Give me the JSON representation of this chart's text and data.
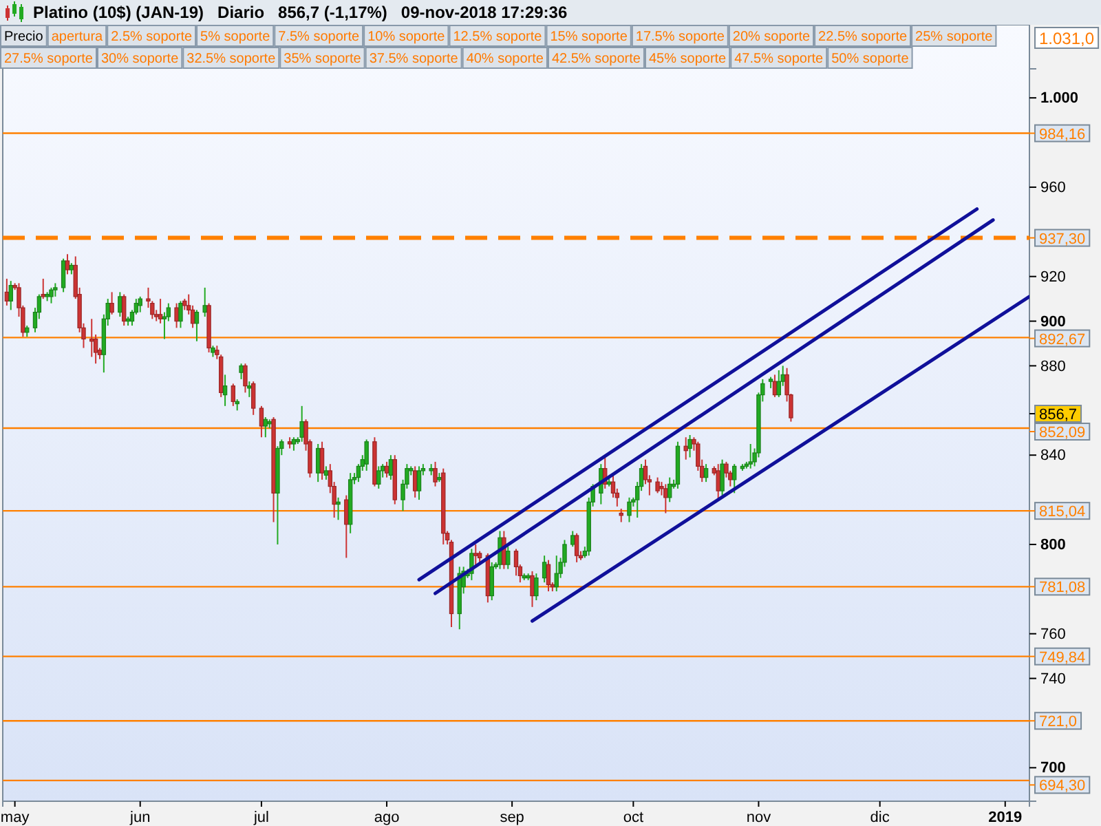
{
  "chart_data": {
    "type": "candlestick",
    "title": "Platino (10$) (JAN-19)   Diario   856,7 (-1,17%)   09-nov-2018 17:29:36",
    "x": [
      "2018-04-29",
      "2018-04-30",
      "2018-05-01",
      "2018-05-02",
      "2018-05-03",
      "2018-05-04",
      "2018-05-06",
      "2018-05-07",
      "2018-05-08",
      "2018-05-09",
      "2018-05-10",
      "2018-05-11",
      "2018-05-13",
      "2018-05-14",
      "2018-05-15",
      "2018-05-16",
      "2018-05-17",
      "2018-05-18",
      "2018-05-20",
      "2018-05-21",
      "2018-05-22",
      "2018-05-23",
      "2018-05-24",
      "2018-05-25",
      "2018-05-27",
      "2018-05-28",
      "2018-05-29",
      "2018-05-30",
      "2018-05-31",
      "2018-06-01",
      "2018-06-03",
      "2018-06-04",
      "2018-06-05",
      "2018-06-06",
      "2018-06-07",
      "2018-06-08",
      "2018-06-10",
      "2018-06-11",
      "2018-06-12",
      "2018-06-13",
      "2018-06-14",
      "2018-06-15",
      "2018-06-17",
      "2018-06-18",
      "2018-06-19",
      "2018-06-20",
      "2018-06-21",
      "2018-06-22",
      "2018-06-24",
      "2018-06-25",
      "2018-06-26",
      "2018-06-27",
      "2018-06-28",
      "2018-06-29",
      "2018-07-01",
      "2018-07-02",
      "2018-07-03",
      "2018-07-04",
      "2018-07-05",
      "2018-07-06",
      "2018-07-08",
      "2018-07-09",
      "2018-07-10",
      "2018-07-11",
      "2018-07-12",
      "2018-07-13",
      "2018-07-15",
      "2018-07-16",
      "2018-07-17",
      "2018-07-18",
      "2018-07-19",
      "2018-07-20",
      "2018-07-22",
      "2018-07-23",
      "2018-07-24",
      "2018-07-25",
      "2018-07-26",
      "2018-07-27",
      "2018-07-29",
      "2018-07-30",
      "2018-07-31",
      "2018-08-01",
      "2018-08-02",
      "2018-08-03",
      "2018-08-05",
      "2018-08-06",
      "2018-08-07",
      "2018-08-08",
      "2018-08-09",
      "2018-08-10",
      "2018-08-12",
      "2018-08-13",
      "2018-08-14",
      "2018-08-15",
      "2018-08-16",
      "2018-08-17",
      "2018-08-19",
      "2018-08-20",
      "2018-08-21",
      "2018-08-22",
      "2018-08-23",
      "2018-08-24",
      "2018-08-26",
      "2018-08-27",
      "2018-08-28",
      "2018-08-29",
      "2018-08-30",
      "2018-08-31",
      "2018-09-02",
      "2018-09-03",
      "2018-09-04",
      "2018-09-05",
      "2018-09-06",
      "2018-09-07",
      "2018-09-09",
      "2018-09-10",
      "2018-09-11",
      "2018-09-12",
      "2018-09-13",
      "2018-09-14",
      "2018-09-16",
      "2018-09-17",
      "2018-09-18",
      "2018-09-19",
      "2018-09-20",
      "2018-09-21",
      "2018-09-23",
      "2018-09-24",
      "2018-09-25",
      "2018-09-26",
      "2018-09-27",
      "2018-09-28",
      "2018-09-30",
      "2018-10-01",
      "2018-10-02",
      "2018-10-03",
      "2018-10-04",
      "2018-10-05",
      "2018-10-07",
      "2018-10-08",
      "2018-10-09",
      "2018-10-10",
      "2018-10-11",
      "2018-10-12",
      "2018-10-14",
      "2018-10-15",
      "2018-10-16",
      "2018-10-17",
      "2018-10-18",
      "2018-10-19",
      "2018-10-21",
      "2018-10-22",
      "2018-10-23",
      "2018-10-24",
      "2018-10-25",
      "2018-10-26",
      "2018-10-28",
      "2018-10-29",
      "2018-10-30",
      "2018-10-31",
      "2018-11-01",
      "2018-11-02",
      "2018-11-04",
      "2018-11-05",
      "2018-11-06",
      "2018-11-07",
      "2018-11-08",
      "2018-11-09"
    ],
    "ohlc": [
      [
        913,
        919,
        907,
        909
      ],
      [
        909,
        918,
        905,
        916
      ],
      [
        916,
        917,
        914,
        915
      ],
      [
        915,
        917,
        902,
        906
      ],
      [
        906,
        907,
        893,
        895
      ],
      [
        895,
        898,
        893,
        897
      ],
      [
        897,
        906,
        895,
        904
      ],
      [
        904,
        912,
        901,
        911
      ],
      [
        912,
        919,
        910,
        911
      ],
      [
        911,
        913,
        909,
        912
      ],
      [
        911,
        915,
        908,
        914
      ],
      [
        914,
        917,
        911,
        915
      ],
      [
        915,
        928,
        913,
        927
      ],
      [
        927,
        930,
        921,
        923
      ],
      [
        923,
        926,
        921,
        925
      ],
      [
        925,
        929,
        910,
        911
      ],
      [
        912,
        915,
        895,
        897
      ],
      [
        897,
        899,
        888,
        892
      ],
      [
        892,
        901,
        884,
        891
      ],
      [
        892,
        894,
        881,
        886
      ],
      [
        887,
        888,
        883,
        885
      ],
      [
        885,
        903,
        877,
        901
      ],
      [
        901,
        910,
        898,
        908
      ],
      [
        908,
        913,
        903,
        904
      ],
      [
        904,
        913,
        902,
        911
      ],
      [
        911,
        912,
        898,
        900
      ],
      [
        900,
        902,
        898,
        901
      ],
      [
        900,
        905,
        898,
        904
      ],
      [
        904,
        910,
        903,
        908
      ],
      [
        907,
        911,
        904,
        910
      ],
      [
        910,
        915,
        906,
        909
      ],
      [
        908,
        909,
        901,
        903
      ],
      [
        903,
        905,
        900,
        902
      ],
      [
        903,
        910,
        899,
        901
      ],
      [
        901,
        904,
        892,
        902
      ],
      [
        902,
        908,
        900,
        906
      ],
      [
        906,
        908,
        897,
        900
      ],
      [
        900,
        909,
        897,
        908
      ],
      [
        909,
        910,
        905,
        907
      ],
      [
        907,
        912,
        903,
        905
      ],
      [
        905,
        907,
        897,
        899
      ],
      [
        899,
        905,
        891,
        904
      ],
      [
        904,
        915,
        902,
        907
      ],
      [
        907,
        908,
        886,
        888
      ],
      [
        886,
        889,
        884,
        888
      ],
      [
        887,
        889,
        883,
        885
      ],
      [
        884,
        885,
        866,
        868
      ],
      [
        867,
        876,
        862,
        871
      ],
      [
        871,
        872,
        862,
        864
      ],
      [
        863,
        865,
        860,
        864
      ],
      [
        877,
        881,
        874,
        880
      ],
      [
        880,
        881,
        868,
        871
      ],
      [
        870,
        873,
        866,
        871
      ],
      [
        872,
        873,
        858,
        861
      ],
      [
        861,
        862,
        848,
        853
      ],
      [
        853,
        857,
        848,
        856
      ],
      [
        854,
        856,
        852,
        855
      ],
      [
        856,
        857,
        810,
        823
      ],
      [
        823,
        844,
        800,
        843
      ],
      [
        843,
        847,
        840,
        846
      ],
      [
        846,
        848,
        843,
        845
      ],
      [
        845,
        848,
        842,
        847
      ],
      [
        846,
        848,
        845,
        847
      ],
      [
        848,
        862,
        846,
        855
      ],
      [
        855,
        856,
        842,
        845
      ],
      [
        846,
        847,
        830,
        832
      ],
      [
        832,
        845,
        828,
        843
      ],
      [
        843,
        846,
        829,
        832
      ],
      [
        831,
        835,
        829,
        833
      ],
      [
        833,
        836,
        823,
        826
      ],
      [
        826,
        828,
        812,
        818
      ],
      [
        818,
        821,
        811,
        819
      ],
      [
        820,
        822,
        794,
        809
      ],
      [
        809,
        832,
        805,
        829
      ],
      [
        829,
        832,
        827,
        830
      ],
      [
        830,
        836,
        828,
        835
      ],
      [
        835,
        840,
        833,
        838
      ],
      [
        836,
        847,
        833,
        846
      ],
      [
        846,
        848,
        826,
        827
      ],
      [
        827,
        835,
        825,
        833
      ],
      [
        833,
        836,
        830,
        835
      ],
      [
        835,
        837,
        830,
        832
      ],
      [
        831,
        840,
        829,
        838
      ],
      [
        838,
        840,
        818,
        820
      ],
      [
        820,
        829,
        815,
        827
      ],
      [
        827,
        836,
        825,
        834
      ],
      [
        833,
        835,
        831,
        834
      ],
      [
        833,
        835,
        821,
        824
      ],
      [
        824,
        835,
        820,
        833
      ],
      [
        833,
        836,
        831,
        834
      ],
      [
        833,
        836,
        831,
        834
      ],
      [
        834,
        837,
        826,
        828
      ],
      [
        829,
        832,
        828,
        830
      ],
      [
        832,
        834,
        800,
        805
      ],
      [
        805,
        806,
        800,
        802
      ],
      [
        801,
        802,
        763,
        769
      ],
      [
        769,
        790,
        762,
        787
      ],
      [
        781,
        790,
        778,
        788
      ],
      [
        786,
        789,
        785,
        787
      ],
      [
        787,
        798,
        784,
        796
      ],
      [
        796,
        800,
        790,
        795
      ],
      [
        796,
        797,
        792,
        794
      ],
      [
        795,
        796,
        774,
        777
      ],
      [
        777,
        792,
        775,
        790
      ],
      [
        790,
        792,
        789,
        791
      ],
      [
        791,
        806,
        789,
        803
      ],
      [
        803,
        806,
        789,
        791
      ],
      [
        791,
        799,
        789,
        797
      ],
      [
        797,
        798,
        786,
        790
      ],
      [
        790,
        791,
        783,
        786
      ],
      [
        785,
        787,
        784,
        786
      ],
      [
        785,
        787,
        784,
        786
      ],
      [
        786,
        788,
        772,
        777
      ],
      [
        777,
        787,
        775,
        785
      ],
      [
        785,
        795,
        783,
        792
      ],
      [
        791,
        793,
        779,
        782
      ],
      [
        782,
        783,
        779,
        781
      ],
      [
        781,
        795,
        779,
        787
      ],
      [
        787,
        794,
        785,
        792
      ],
      [
        792,
        802,
        790,
        800
      ],
      [
        800,
        806,
        799,
        804
      ],
      [
        804,
        805,
        792,
        795
      ],
      [
        795,
        797,
        793,
        794
      ],
      [
        795,
        799,
        794,
        797
      ],
      [
        797,
        821,
        795,
        819
      ],
      [
        819,
        827,
        817,
        826
      ],
      [
        823,
        836,
        818,
        834
      ],
      [
        834,
        840,
        825,
        827
      ],
      [
        827,
        830,
        826,
        828
      ],
      [
        828,
        831,
        821,
        823
      ],
      [
        823,
        825,
        817,
        821
      ],
      [
        814,
        816,
        810,
        813
      ],
      [
        813,
        821,
        810,
        819
      ],
      [
        819,
        821,
        817,
        820
      ],
      [
        820,
        828,
        812,
        826
      ],
      [
        826,
        836,
        824,
        834
      ],
      [
        835,
        838,
        827,
        829
      ],
      [
        829,
        831,
        822,
        828
      ],
      [
        828,
        830,
        823,
        824
      ],
      [
        826,
        828,
        822,
        825
      ],
      [
        825,
        827,
        814,
        821
      ],
      [
        821,
        830,
        819,
        827
      ],
      [
        826,
        829,
        825,
        827
      ],
      [
        827,
        846,
        825,
        844
      ],
      [
        844,
        848,
        838,
        842
      ],
      [
        843,
        849,
        839,
        847
      ],
      [
        847,
        848,
        842,
        845
      ],
      [
        845,
        846,
        833,
        835
      ],
      [
        835,
        838,
        828,
        830
      ],
      [
        830,
        836,
        828,
        834
      ],
      [
        834,
        835,
        831,
        832
      ],
      [
        833,
        836,
        820,
        824
      ],
      [
        824,
        838,
        822,
        836
      ],
      [
        836,
        837,
        830,
        832
      ],
      [
        832,
        833,
        826,
        829
      ],
      [
        829,
        836,
        823,
        835
      ],
      [
        834,
        836,
        833,
        835
      ],
      [
        835,
        837,
        834,
        836
      ],
      [
        836,
        845,
        834,
        837
      ],
      [
        837,
        843,
        835,
        841
      ],
      [
        841,
        868,
        839,
        867
      ],
      [
        867,
        874,
        864,
        872
      ],
      [
        873,
        875,
        870,
        874
      ],
      [
        873,
        876,
        866,
        867
      ],
      [
        867,
        878,
        866,
        873
      ],
      [
        873,
        880,
        871,
        876
      ],
      [
        876,
        879,
        864,
        867
      ],
      [
        867,
        867.5,
        855,
        856.7
      ]
    ],
    "colors": [
      "#cc3333",
      "#22aa22",
      "#cc3333",
      "#cc3333",
      "#cc3333",
      "#22aa22",
      "#22aa22",
      "#22aa22",
      "#cc3333",
      "#22aa22",
      "#22aa22",
      "#22aa22",
      "#22aa22",
      "#cc3333",
      "#22aa22",
      "#cc3333",
      "#cc3333",
      "#cc3333",
      "#cc3333",
      "#cc3333",
      "#cc3333",
      "#22aa22",
      "#22aa22",
      "#cc3333",
      "#22aa22",
      "#cc3333",
      "#22aa22",
      "#22aa22",
      "#22aa22",
      "#22aa22",
      "#cc3333",
      "#cc3333",
      "#cc3333",
      "#cc3333",
      "#22aa22",
      "#22aa22",
      "#cc3333",
      "#22aa22",
      "#cc3333",
      "#cc3333",
      "#cc3333",
      "#22aa22",
      "#22aa22",
      "#cc3333",
      "#22aa22",
      "#cc3333",
      "#cc3333",
      "#22aa22",
      "#cc3333",
      "#22aa22",
      "#22aa22",
      "#cc3333",
      "#22aa22",
      "#cc3333",
      "#cc3333",
      "#22aa22",
      "#22aa22",
      "#cc3333",
      "#22aa22",
      "#22aa22",
      "#cc3333",
      "#22aa22",
      "#22aa22",
      "#22aa22",
      "#cc3333",
      "#cc3333",
      "#22aa22",
      "#cc3333",
      "#22aa22",
      "#cc3333",
      "#cc3333",
      "#22aa22",
      "#cc3333",
      "#22aa22",
      "#22aa22",
      "#22aa22",
      "#22aa22",
      "#22aa22",
      "#cc3333",
      "#22aa22",
      "#22aa22",
      "#cc3333",
      "#22aa22",
      "#cc3333",
      "#22aa22",
      "#22aa22",
      "#22aa22",
      "#cc3333",
      "#22aa22",
      "#22aa22",
      "#22aa22",
      "#cc3333",
      "#22aa22",
      "#cc3333",
      "#cc3333",
      "#cc3333",
      "#22aa22",
      "#22aa22",
      "#22aa22",
      "#22aa22",
      "#cc3333",
      "#cc3333",
      "#cc3333",
      "#22aa22",
      "#22aa22",
      "#22aa22",
      "#cc3333",
      "#22aa22",
      "#cc3333",
      "#cc3333",
      "#22aa22",
      "#22aa22",
      "#cc3333",
      "#22aa22",
      "#22aa22",
      "#cc3333",
      "#cc3333",
      "#22aa22",
      "#22aa22",
      "#22aa22",
      "#22aa22",
      "#cc3333",
      "#cc3333",
      "#22aa22",
      "#22aa22",
      "#22aa22",
      "#22aa22",
      "#cc3333",
      "#22aa22",
      "#cc3333",
      "#cc3333",
      "#cc3333",
      "#22aa22",
      "#22aa22",
      "#22aa22",
      "#22aa22",
      "#cc3333",
      "#cc3333",
      "#cc3333",
      "#cc3333",
      "#cc3333",
      "#22aa22",
      "#22aa22",
      "#22aa22",
      "#cc3333",
      "#22aa22",
      "#cc3333",
      "#cc3333",
      "#cc3333",
      "#22aa22",
      "#cc3333",
      "#cc3333",
      "#22aa22",
      "#cc3333",
      "#cc3333",
      "#22aa22",
      "#22aa22",
      "#22aa22",
      "#22aa22",
      "#22aa22",
      "#22aa22",
      "#22aa22",
      "#22aa22",
      "#cc3333",
      "#22aa22",
      "#22aa22",
      "#cc3333",
      "#cc3333"
    ],
    "series": [
      {
        "type": "line",
        "x": [
          "2018-08-09",
          "2018-12-25"
        ],
        "values": [
          784.2,
          950.2
        ],
        "color": "#10109a"
      },
      {
        "type": "line",
        "x": [
          "2018-08-13",
          "2018-12-29"
        ],
        "values": [
          778.1,
          945.3
        ],
        "color": "#10109a"
      },
      {
        "type": "line",
        "x": [
          "2018-09-06",
          "2019-01-07"
        ],
        "values": [
          765.7,
          911
        ],
        "color": "#10109a"
      }
    ],
    "xlim": [
      "2018-04-28",
      "2019-01-07"
    ],
    "ylim": [
      685,
      1013
    ],
    "xticks": [
      {
        "value": "2018-05-01",
        "label": "may"
      },
      {
        "value": "2018-06-01",
        "label": "jun"
      },
      {
        "value": "2018-07-01",
        "label": "jul"
      },
      {
        "value": "2018-08-01",
        "label": "ago"
      },
      {
        "value": "2018-09-01",
        "label": "sep"
      },
      {
        "value": "2018-10-01",
        "label": "oct"
      },
      {
        "value": "2018-11-01",
        "label": "nov"
      },
      {
        "value": "2018-12-01",
        "label": "dic"
      },
      {
        "value": "2019-01-01",
        "label": "2019"
      }
    ],
    "yticks": [
      700,
      740,
      760,
      800,
      840,
      880,
      900,
      920,
      960,
      {
        "value": 1000,
        "label": "1.000"
      }
    ],
    "ref_lines": [
      {
        "axis": "y",
        "value": 984.16,
        "label": "984,16",
        "color": "#ff8000"
      },
      {
        "axis": "y",
        "value": 937.3,
        "label": "937,30",
        "color": "#ff8000",
        "line_style": "dashed"
      },
      {
        "axis": "y",
        "value": 892.67,
        "label": "892,67",
        "color": "#ff8000"
      },
      {
        "axis": "y",
        "value": 852.09,
        "label": "852,09",
        "color": "#ff8000"
      },
      {
        "axis": "y",
        "value": 815.04,
        "label": "815,04",
        "color": "#ff8000"
      },
      {
        "axis": "y",
        "value": 781.08,
        "label": "781,08",
        "color": "#ff8000"
      },
      {
        "axis": "y",
        "value": 749.84,
        "label": "749,84",
        "color": "#ff8000"
      },
      {
        "axis": "y",
        "value": 721.0,
        "label": "721,0",
        "color": "#ff8000"
      },
      {
        "axis": "y",
        "value": 694.3,
        "label": "694,30",
        "color": "#ff8000"
      }
    ],
    "annotations": [
      "Precio",
      "apertura",
      "2.5% soporte",
      "5% soporte",
      "7.5% soporte",
      "10% soporte",
      "12.5% soporte",
      "15% soporte",
      "17.5% soporte",
      "20% soporte",
      "22.5% soporte",
      "25% soporte",
      "27.5% soporte",
      "30% soporte",
      "32.5% soporte",
      "35% soporte",
      "37.5% soporte",
      "40% soporte",
      "42.5% soporte",
      "45% soporte",
      "47.5% soporte",
      "50% soporte",
      "1.031,0",
      "856,7"
    ]
  }
}
